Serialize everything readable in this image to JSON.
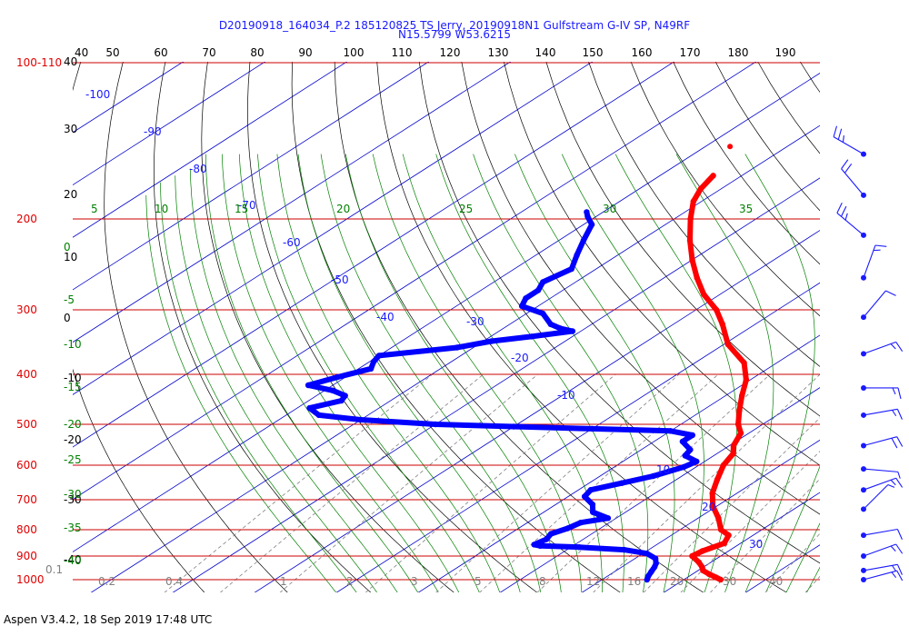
{
  "chart_data": {
    "type": "skew-t",
    "title_line1": "D20190918_164034_P.2 185120825 TS Jerry, 20190918N1 Gulfstream G-IV SP, N49RF",
    "title_line2": "N15.5799 W53.6215",
    "footer": "Aspen V3.4.2, 18 Sep 2019  17:48 UTC",
    "pressure_levels_hpa": [
      100,
      200,
      300,
      400,
      500,
      600,
      700,
      800,
      900,
      1000
    ],
    "pressure_labels": [
      "100-110",
      "200",
      "300",
      "400",
      "500",
      "600",
      "700",
      "800",
      "900",
      "1000"
    ],
    "top_temperature_scale_f": [
      40,
      50,
      60,
      70,
      80,
      90,
      100,
      110,
      120,
      130,
      140,
      150,
      160,
      170,
      180,
      190
    ],
    "left_temperature_scale_f": [
      "40",
      "30",
      "20",
      "10",
      "0",
      "-10",
      "-20",
      "-30",
      "-40"
    ],
    "left_temperature_scale_c": [
      "0",
      "-5",
      "-10",
      "-15",
      "-20",
      "-25",
      "-30",
      "-35",
      "-40"
    ],
    "isotherm_labels_c": [
      "-100",
      "-90",
      "-80",
      "-70",
      "-60",
      "-50",
      "-40",
      "-30",
      "-20",
      "-10",
      "10",
      "20",
      "30"
    ],
    "moist_adiabat_labels": [
      "5",
      "10",
      "15",
      "20",
      "25",
      "30",
      "35"
    ],
    "mixing_ratio_labels": [
      "0.1",
      "0.2",
      "0.4",
      "1",
      "2",
      "3",
      "5",
      "8",
      "12",
      "16",
      "20",
      "30",
      "40"
    ],
    "series": [
      {
        "name": "Temperature",
        "color": "#ff0000",
        "points": [
          {
            "p": 1000,
            "t": 24.5
          },
          {
            "p": 990,
            "t": 23.5
          },
          {
            "p": 975,
            "t": 22.0
          },
          {
            "p": 960,
            "t": 20.6
          },
          {
            "p": 945,
            "t": 19.8
          },
          {
            "p": 925,
            "t": 18.5
          },
          {
            "p": 900,
            "t": 16.5
          },
          {
            "p": 880,
            "t": 16.8
          },
          {
            "p": 850,
            "t": 18.0
          },
          {
            "p": 820,
            "t": 17.0
          },
          {
            "p": 800,
            "t": 15.0
          },
          {
            "p": 760,
            "t": 12.5
          },
          {
            "p": 720,
            "t": 9.5
          },
          {
            "p": 680,
            "t": 7.0
          },
          {
            "p": 640,
            "t": 5.0
          },
          {
            "p": 600,
            "t": 3.0
          },
          {
            "p": 570,
            "t": 2.0
          },
          {
            "p": 550,
            "t": 0.5
          },
          {
            "p": 520,
            "t": -1.0
          },
          {
            "p": 500,
            "t": -3.0
          },
          {
            "p": 470,
            "t": -5.5
          },
          {
            "p": 440,
            "t": -8.0
          },
          {
            "p": 410,
            "t": -10.5
          },
          {
            "p": 380,
            "t": -14.0
          },
          {
            "p": 350,
            "t": -19.5
          },
          {
            "p": 320,
            "t": -24.0
          },
          {
            "p": 300,
            "t": -27.5
          },
          {
            "p": 280,
            "t": -32.0
          },
          {
            "p": 260,
            "t": -36.0
          },
          {
            "p": 240,
            "t": -40.0
          },
          {
            "p": 220,
            "t": -44.0
          },
          {
            "p": 200,
            "t": -48.0
          },
          {
            "p": 185,
            "t": -51.0
          },
          {
            "p": 175,
            "t": -52.5
          },
          {
            "p": 165,
            "t": -53.5
          }
        ],
        "outlier": {
          "p": 145,
          "t": -57
        }
      },
      {
        "name": "Dewpoint",
        "color": "#0000ff",
        "points": [
          {
            "p": 1000,
            "t": 15.5
          },
          {
            "p": 985,
            "t": 15.0
          },
          {
            "p": 965,
            "t": 14.5
          },
          {
            "p": 945,
            "t": 14.0
          },
          {
            "p": 930,
            "t": 13.5
          },
          {
            "p": 910,
            "t": 12.5
          },
          {
            "p": 890,
            "t": 10.5
          },
          {
            "p": 875,
            "t": 7.0
          },
          {
            "p": 865,
            "t": 1.0
          },
          {
            "p": 860,
            "t": -4.0
          },
          {
            "p": 855,
            "t": -5.0
          },
          {
            "p": 835,
            "t": -4.5
          },
          {
            "p": 815,
            "t": -5.0
          },
          {
            "p": 795,
            "t": -4.0
          },
          {
            "p": 775,
            "t": -3.5
          },
          {
            "p": 760,
            "t": -1.0
          },
          {
            "p": 740,
            "t": -4.0
          },
          {
            "p": 715,
            "t": -5.5
          },
          {
            "p": 690,
            "t": -8.0
          },
          {
            "p": 670,
            "t": -8.5
          },
          {
            "p": 650,
            "t": -6.0
          },
          {
            "p": 630,
            "t": -3.5
          },
          {
            "p": 605,
            "t": -1.5
          },
          {
            "p": 590,
            "t": -1.0
          },
          {
            "p": 575,
            "t": -3.5
          },
          {
            "p": 560,
            "t": -4.0
          },
          {
            "p": 540,
            "t": -6.5
          },
          {
            "p": 525,
            "t": -6.5
          },
          {
            "p": 515,
            "t": -10.0
          },
          {
            "p": 510,
            "t": -20.0
          },
          {
            "p": 505,
            "t": -30.0
          },
          {
            "p": 500,
            "t": -40.0
          },
          {
            "p": 490,
            "t": -50.0
          },
          {
            "p": 480,
            "t": -56.0
          },
          {
            "p": 465,
            "t": -58.5
          },
          {
            "p": 450,
            "t": -56.0
          },
          {
            "p": 440,
            "t": -56.5
          },
          {
            "p": 430,
            "t": -59.0
          },
          {
            "p": 420,
            "t": -63.0
          },
          {
            "p": 405,
            "t": -61.0
          },
          {
            "p": 390,
            "t": -58.5
          },
          {
            "p": 378,
            "t": -59.5
          },
          {
            "p": 368,
            "t": -60.0
          },
          {
            "p": 355,
            "t": -52.0
          },
          {
            "p": 345,
            "t": -49.0
          },
          {
            "p": 338,
            "t": -45.0
          },
          {
            "p": 330,
            "t": -41.0
          },
          {
            "p": 326,
            "t": -43.0
          },
          {
            "p": 320,
            "t": -45.0
          },
          {
            "p": 305,
            "t": -48.0
          },
          {
            "p": 295,
            "t": -52.0
          },
          {
            "p": 285,
            "t": -53.0
          },
          {
            "p": 275,
            "t": -53.0
          },
          {
            "p": 265,
            "t": -54.0
          },
          {
            "p": 250,
            "t": -53.0
          },
          {
            "p": 235,
            "t": -55.0
          },
          {
            "p": 220,
            "t": -57.0
          },
          {
            "p": 205,
            "t": -59.0
          },
          {
            "p": 198,
            "t": -61.0
          },
          {
            "p": 194,
            "t": -62.0
          }
        ]
      }
    ],
    "wind_barbs": [
      {
        "p": 150,
        "dir": 300,
        "kt": 25
      },
      {
        "p": 180,
        "dir": 320,
        "kt": 20
      },
      {
        "p": 215,
        "dir": 310,
        "kt": 25
      },
      {
        "p": 260,
        "dir": 20,
        "kt": 15
      },
      {
        "p": 310,
        "dir": 40,
        "kt": 10
      },
      {
        "p": 365,
        "dir": 70,
        "kt": 15
      },
      {
        "p": 425,
        "dir": 90,
        "kt": 15
      },
      {
        "p": 480,
        "dir": 80,
        "kt": 15
      },
      {
        "p": 550,
        "dir": 75,
        "kt": 20
      },
      {
        "p": 610,
        "dir": 95,
        "kt": 5
      },
      {
        "p": 670,
        "dir": 70,
        "kt": 15
      },
      {
        "p": 730,
        "dir": 45,
        "kt": 5
      },
      {
        "p": 820,
        "dir": 80,
        "kt": 10
      },
      {
        "p": 900,
        "dir": 70,
        "kt": 15
      },
      {
        "p": 960,
        "dir": 80,
        "kt": 15
      },
      {
        "p": 1000,
        "dir": 75,
        "kt": 15
      }
    ],
    "colors": {
      "isobar": "#cc0000",
      "isotherm": "#0000cc",
      "dry_adiabat": "#000000",
      "moist_adiabat": "#008000",
      "mixing_ratio": "#808080",
      "label_blue": "#1a1aff",
      "label_green": "#008000",
      "label_red": "#e00000"
    }
  }
}
